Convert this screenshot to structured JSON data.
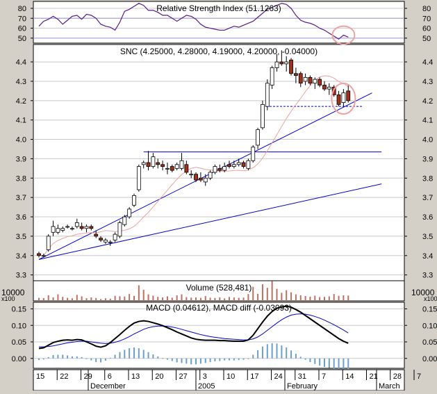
{
  "rsi": {
    "title": "Relative Strength Index (51.1263)",
    "ticks": [
      "80",
      "70",
      "60",
      "50"
    ]
  },
  "price": {
    "title": "SNC (4.25000, 4.28000, 4.19000, 4.20000, -0.04000)",
    "ticks": [
      "4.4",
      "4.3",
      "4.2",
      "4.1",
      "4.0",
      "3.9",
      "3.8",
      "3.7",
      "3.6",
      "3.5",
      "3.4",
      "3.3"
    ]
  },
  "volume": {
    "title": "Volume (528,481)",
    "tick": "10000",
    "multiplier": "x100"
  },
  "macd": {
    "title": "MACD (0.04612), MACD diff (-0.03093)",
    "ticks": [
      "0.15",
      "0.10",
      "0.05",
      "0.00"
    ]
  },
  "xaxis": {
    "day_labels": [
      "15",
      "22",
      "29",
      "6",
      "13",
      "20",
      "27",
      "3",
      "10",
      "17",
      "24",
      "31",
      "7",
      "14",
      "21",
      "28",
      "7"
    ],
    "month_labels": [
      "December",
      "2005",
      "February",
      "March"
    ]
  },
  "chart_data": [
    {
      "type": "line",
      "name": "rsi",
      "title": "Relative Strength Index (51.1263)",
      "ylim": [
        45,
        87
      ],
      "reference_lines": [
        70,
        50
      ],
      "values": [
        62,
        67,
        69,
        72,
        69,
        64,
        68,
        72,
        73,
        69,
        74,
        73,
        70,
        64,
        62,
        61,
        58,
        66,
        77,
        79,
        82,
        85,
        83,
        78,
        78,
        76,
        73,
        73,
        70,
        67,
        70,
        73,
        72,
        69,
        64,
        61,
        60,
        59,
        58,
        58,
        60,
        62,
        61,
        63,
        65,
        67,
        71,
        75,
        79,
        81,
        83,
        85,
        84,
        80,
        73,
        68,
        66,
        65,
        63,
        60,
        58,
        55,
        52,
        49,
        53,
        51
      ]
    },
    {
      "type": "candlestick",
      "name": "SNC",
      "title": "SNC (4.25000, 4.28000, 4.19000, 4.20000, -0.04000)",
      "ylim": [
        3.27,
        4.49
      ],
      "ohlc": [
        [
          3.41,
          3.42,
          3.39,
          3.4
        ],
        [
          3.4,
          3.41,
          3.39,
          3.4
        ],
        [
          3.43,
          3.51,
          3.42,
          3.5
        ],
        [
          3.52,
          3.58,
          3.5,
          3.55
        ],
        [
          3.52,
          3.56,
          3.51,
          3.54
        ],
        [
          3.53,
          3.55,
          3.52,
          3.54
        ],
        [
          3.55,
          3.56,
          3.54,
          3.55
        ],
        [
          3.54,
          3.55,
          3.53,
          3.54
        ],
        [
          3.55,
          3.59,
          3.54,
          3.57
        ],
        [
          3.55,
          3.57,
          3.53,
          3.54
        ],
        [
          3.54,
          3.56,
          3.52,
          3.55
        ],
        [
          3.55,
          3.56,
          3.53,
          3.54
        ],
        [
          3.51,
          3.53,
          3.49,
          3.5
        ],
        [
          3.49,
          3.5,
          3.47,
          3.48
        ],
        [
          3.47,
          3.49,
          3.46,
          3.48
        ],
        [
          3.47,
          3.48,
          3.45,
          3.47
        ],
        [
          3.48,
          3.52,
          3.47,
          3.51
        ],
        [
          3.5,
          3.58,
          3.49,
          3.57
        ],
        [
          3.56,
          3.61,
          3.55,
          3.6
        ],
        [
          3.6,
          3.65,
          3.59,
          3.64
        ],
        [
          3.66,
          3.72,
          3.65,
          3.71
        ],
        [
          3.74,
          3.87,
          3.73,
          3.86
        ],
        [
          3.87,
          3.89,
          3.85,
          3.88
        ],
        [
          3.88,
          3.94,
          3.84,
          3.86
        ],
        [
          3.86,
          3.93,
          3.85,
          3.91
        ],
        [
          3.88,
          3.9,
          3.85,
          3.87
        ],
        [
          3.87,
          3.89,
          3.84,
          3.86
        ],
        [
          3.85,
          3.88,
          3.82,
          3.85
        ],
        [
          3.86,
          3.87,
          3.83,
          3.84
        ],
        [
          3.85,
          3.88,
          3.84,
          3.87
        ],
        [
          3.85,
          3.93,
          3.84,
          3.89
        ],
        [
          3.87,
          3.89,
          3.82,
          3.83
        ],
        [
          3.82,
          3.84,
          3.8,
          3.82
        ],
        [
          3.82,
          3.83,
          3.78,
          3.79
        ],
        [
          3.8,
          3.83,
          3.78,
          3.79
        ],
        [
          3.78,
          3.82,
          3.76,
          3.8
        ],
        [
          3.8,
          3.84,
          3.79,
          3.83
        ],
        [
          3.83,
          3.87,
          3.82,
          3.86
        ],
        [
          3.85,
          3.87,
          3.83,
          3.84
        ],
        [
          3.84,
          3.88,
          3.83,
          3.86
        ],
        [
          3.87,
          3.89,
          3.85,
          3.86
        ],
        [
          3.86,
          3.89,
          3.85,
          3.87
        ],
        [
          3.87,
          3.9,
          3.86,
          3.88
        ],
        [
          3.88,
          3.89,
          3.85,
          3.86
        ],
        [
          3.85,
          3.9,
          3.84,
          3.89
        ],
        [
          3.89,
          3.97,
          3.88,
          3.96
        ],
        [
          3.97,
          4.06,
          3.95,
          4.05
        ],
        [
          4.06,
          4.2,
          4.05,
          4.18
        ],
        [
          4.17,
          4.31,
          4.15,
          4.29
        ],
        [
          4.28,
          4.38,
          4.26,
          4.37
        ],
        [
          4.37,
          4.44,
          4.35,
          4.4
        ],
        [
          4.4,
          4.46,
          4.38,
          4.39
        ],
        [
          4.39,
          4.43,
          4.35,
          4.4
        ],
        [
          4.41,
          4.42,
          4.33,
          4.34
        ],
        [
          4.34,
          4.37,
          4.29,
          4.33
        ],
        [
          4.34,
          4.35,
          4.27,
          4.29
        ],
        [
          4.3,
          4.34,
          4.28,
          4.32
        ],
        [
          4.32,
          4.33,
          4.28,
          4.29
        ],
        [
          4.29,
          4.32,
          4.26,
          4.31
        ],
        [
          4.31,
          4.32,
          4.27,
          4.28
        ],
        [
          4.28,
          4.3,
          4.25,
          4.26
        ],
        [
          4.26,
          4.29,
          4.23,
          4.27
        ],
        [
          4.27,
          4.28,
          4.22,
          4.23
        ],
        [
          4.23,
          4.25,
          4.17,
          4.18
        ],
        [
          4.19,
          4.26,
          4.17,
          4.24
        ],
        [
          4.25,
          4.28,
          4.19,
          4.2
        ]
      ],
      "trendlines": [
        {
          "from": [
            0,
            3.38
          ],
          "to": [
            72,
            3.77
          ]
        },
        {
          "from": [
            0,
            3.38
          ],
          "to": [
            70,
            4.24
          ]
        },
        {
          "from": [
            22,
            3.935
          ],
          "to": [
            72,
            3.935
          ]
        }
      ],
      "support_dashed": {
        "from": [
          47,
          4.17
        ],
        "to": [
          68,
          4.17
        ]
      }
    },
    {
      "type": "bar",
      "name": "volume",
      "title": "Volume (528,481)",
      "ylim": [
        0,
        20000
      ],
      "values": [
        3000,
        2800,
        5600,
        3500,
        6500,
        4000,
        3000,
        2600,
        6000,
        4500,
        2700,
        3500,
        2900,
        1800,
        2600,
        2200,
        5000,
        4600,
        4300,
        6800,
        5000,
        15500,
        11000,
        6500,
        5200,
        4000,
        3500,
        4500,
        3200,
        5500,
        6500,
        3800,
        3200,
        3500,
        3000,
        4800,
        3200,
        2900,
        3500,
        2500,
        3900,
        3400,
        3000,
        3300,
        6800,
        14000,
        7000,
        16500,
        13000,
        19500,
        12000,
        8000,
        10500,
        8500,
        6500,
        5500,
        4800,
        4200,
        5200,
        3800,
        4000,
        4500,
        6800,
        5000,
        5500,
        5300
      ]
    },
    {
      "type": "line",
      "name": "macd",
      "title": "MACD (0.04612), MACD diff (-0.03093)",
      "ylim": [
        -0.03,
        0.17
      ],
      "series": [
        {
          "name": "MACD",
          "values": [
            0.03,
            0.032,
            0.04,
            0.048,
            0.052,
            0.055,
            0.056,
            0.055,
            0.057,
            0.056,
            0.05,
            0.044,
            0.037,
            0.034,
            0.038,
            0.048,
            0.06,
            0.072,
            0.085,
            0.097,
            0.107,
            0.112,
            0.114,
            0.112,
            0.108,
            0.104,
            0.099,
            0.093,
            0.087,
            0.08,
            0.074,
            0.068,
            0.062,
            0.058,
            0.056,
            0.055,
            0.055,
            0.055,
            0.054,
            0.054,
            0.053,
            0.052,
            0.052,
            0.052,
            0.056,
            0.07,
            0.09,
            0.11,
            0.128,
            0.142,
            0.152,
            0.156,
            0.158,
            0.155,
            0.148,
            0.14,
            0.13,
            0.12,
            0.11,
            0.1,
            0.09,
            0.08,
            0.07,
            0.06,
            0.052,
            0.046
          ]
        },
        {
          "name": "signal",
          "values": [
            0.035,
            0.035,
            0.036,
            0.038,
            0.041,
            0.044,
            0.047,
            0.049,
            0.051,
            0.052,
            0.052,
            0.05,
            0.048,
            0.046,
            0.045,
            0.046,
            0.049,
            0.053,
            0.059,
            0.066,
            0.074,
            0.081,
            0.088,
            0.093,
            0.096,
            0.098,
            0.098,
            0.097,
            0.095,
            0.092,
            0.088,
            0.084,
            0.08,
            0.076,
            0.072,
            0.069,
            0.066,
            0.064,
            0.062,
            0.06,
            0.059,
            0.058,
            0.057,
            0.056,
            0.056,
            0.059,
            0.065,
            0.074,
            0.085,
            0.096,
            0.107,
            0.117,
            0.125,
            0.131,
            0.134,
            0.135,
            0.134,
            0.131,
            0.127,
            0.122,
            0.116,
            0.109,
            0.102,
            0.094,
            0.086,
            0.077
          ]
        }
      ],
      "diff": [
        -0.005,
        -0.003,
        0.004,
        0.01,
        0.011,
        0.011,
        0.009,
        0.006,
        0.006,
        0.004,
        -0.002,
        -0.006,
        -0.011,
        -0.012,
        -0.007,
        0.002,
        0.011,
        0.019,
        0.026,
        0.031,
        0.033,
        0.031,
        0.026,
        0.019,
        0.012,
        0.006,
        0.001,
        -0.004,
        -0.008,
        -0.012,
        -0.014,
        -0.016,
        -0.018,
        -0.018,
        -0.016,
        -0.014,
        -0.011,
        -0.009,
        -0.008,
        -0.006,
        -0.006,
        -0.006,
        -0.005,
        -0.004,
        0.0,
        0.011,
        0.025,
        0.036,
        0.043,
        0.046,
        0.045,
        0.039,
        0.033,
        0.024,
        0.014,
        0.005,
        -0.004,
        -0.011,
        -0.017,
        -0.022,
        -0.026,
        -0.029,
        -0.032,
        -0.034,
        -0.034,
        -0.031
      ]
    }
  ]
}
